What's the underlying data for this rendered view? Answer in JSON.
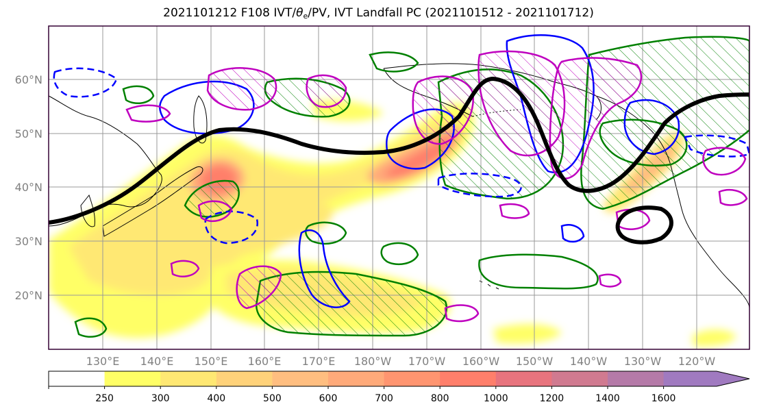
{
  "title": {
    "prefix": "2021101212 F108 IVT/",
    "theta": "θ",
    "theta_sub": "e",
    "suffix": "/PV, IVT Landfall PC (2021101512 - 2021101712)"
  },
  "map": {
    "lat_labels": [
      "60°N",
      "50°N",
      "40°N",
      "30°N",
      "20°N"
    ],
    "lon_labels": [
      "130°E",
      "140°E",
      "150°E",
      "160°E",
      "170°E",
      "180°W",
      "170°W",
      "160°W",
      "150°W",
      "140°W",
      "130°W",
      "120°W"
    ],
    "contour_colors": {
      "thick_contour": "#000000",
      "green": "#008000",
      "blue": "#0000ff",
      "magenta": "#bf00bf"
    }
  },
  "colorbar": {
    "ticks": [
      "250",
      "300",
      "400",
      "500",
      "600",
      "700",
      "800",
      "1000",
      "1200",
      "1400",
      "1600"
    ],
    "colors": [
      "#ffff66",
      "#ffe873",
      "#ffd27a",
      "#ffbe80",
      "#ffaa7a",
      "#ff9570",
      "#ff7f6b",
      "#e8747e",
      "#d07a90",
      "#b57aa8",
      "#a07ac0"
    ]
  }
}
